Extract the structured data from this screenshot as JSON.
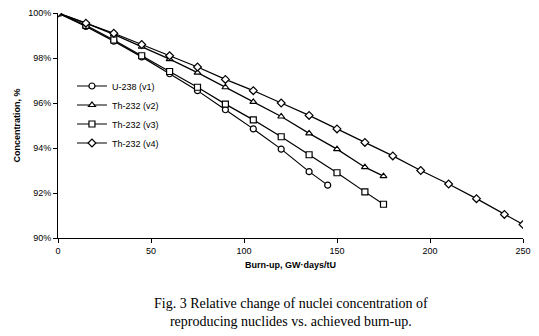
{
  "chart_data": {
    "type": "line",
    "title": "Fig. 3 Relative change of nuclei concentration of reproducing nuclides vs. achieved burn-up.",
    "x_label": "Burn-up, GW·days/tU",
    "y_label": "Concentration, %",
    "xlim": [
      0,
      250
    ],
    "xticks": [
      0,
      50,
      100,
      150,
      200,
      250
    ],
    "ylim": [
      90,
      100
    ],
    "yticks": [
      {
        "value": 90,
        "label": "90%"
      },
      {
        "value": 92,
        "label": "92%"
      },
      {
        "value": 94,
        "label": "94%"
      },
      {
        "value": 96,
        "label": "96%"
      },
      {
        "value": 98,
        "label": "98%"
      },
      {
        "value": 100,
        "label": "100%"
      }
    ],
    "grid": false,
    "legend": "left",
    "series": [
      {
        "name": "U-238 (v1)",
        "color": "#000000",
        "marker": "circle",
        "x": [
          0,
          15,
          30,
          45,
          60,
          75,
          90,
          105,
          120,
          135,
          145
        ],
        "values": [
          100,
          99.4,
          98.75,
          98.05,
          97.3,
          96.55,
          95.7,
          94.85,
          93.95,
          92.95,
          92.35
        ]
      },
      {
        "name": "Th-232 (v2)",
        "color": "#000000",
        "marker": "triangle",
        "x": [
          0,
          15,
          30,
          45,
          60,
          75,
          90,
          105,
          120,
          135,
          150,
          165,
          175
        ],
        "values": [
          100,
          99.55,
          99.05,
          98.5,
          97.95,
          97.35,
          96.7,
          96.05,
          95.4,
          94.65,
          93.95,
          93.15,
          92.75
        ]
      },
      {
        "name": "Th-232 (v3)",
        "color": "#000000",
        "marker": "square",
        "x": [
          0,
          15,
          30,
          45,
          60,
          75,
          90,
          105,
          120,
          135,
          150,
          165,
          175
        ],
        "values": [
          100,
          99.45,
          98.8,
          98.1,
          97.4,
          96.7,
          95.95,
          95.25,
          94.5,
          93.7,
          92.9,
          92.05,
          91.5
        ]
      },
      {
        "name": "Th-232 (v4)",
        "color": "#000000",
        "marker": "diamond",
        "x": [
          0,
          15,
          30,
          45,
          60,
          75,
          90,
          105,
          120,
          135,
          150,
          165,
          180,
          195,
          210,
          225,
          240,
          250
        ],
        "values": [
          100,
          99.55,
          99.1,
          98.6,
          98.1,
          97.6,
          97.05,
          96.55,
          96.0,
          95.45,
          94.85,
          94.25,
          93.65,
          93.0,
          92.4,
          91.75,
          91.05,
          90.6
        ]
      }
    ]
  }
}
